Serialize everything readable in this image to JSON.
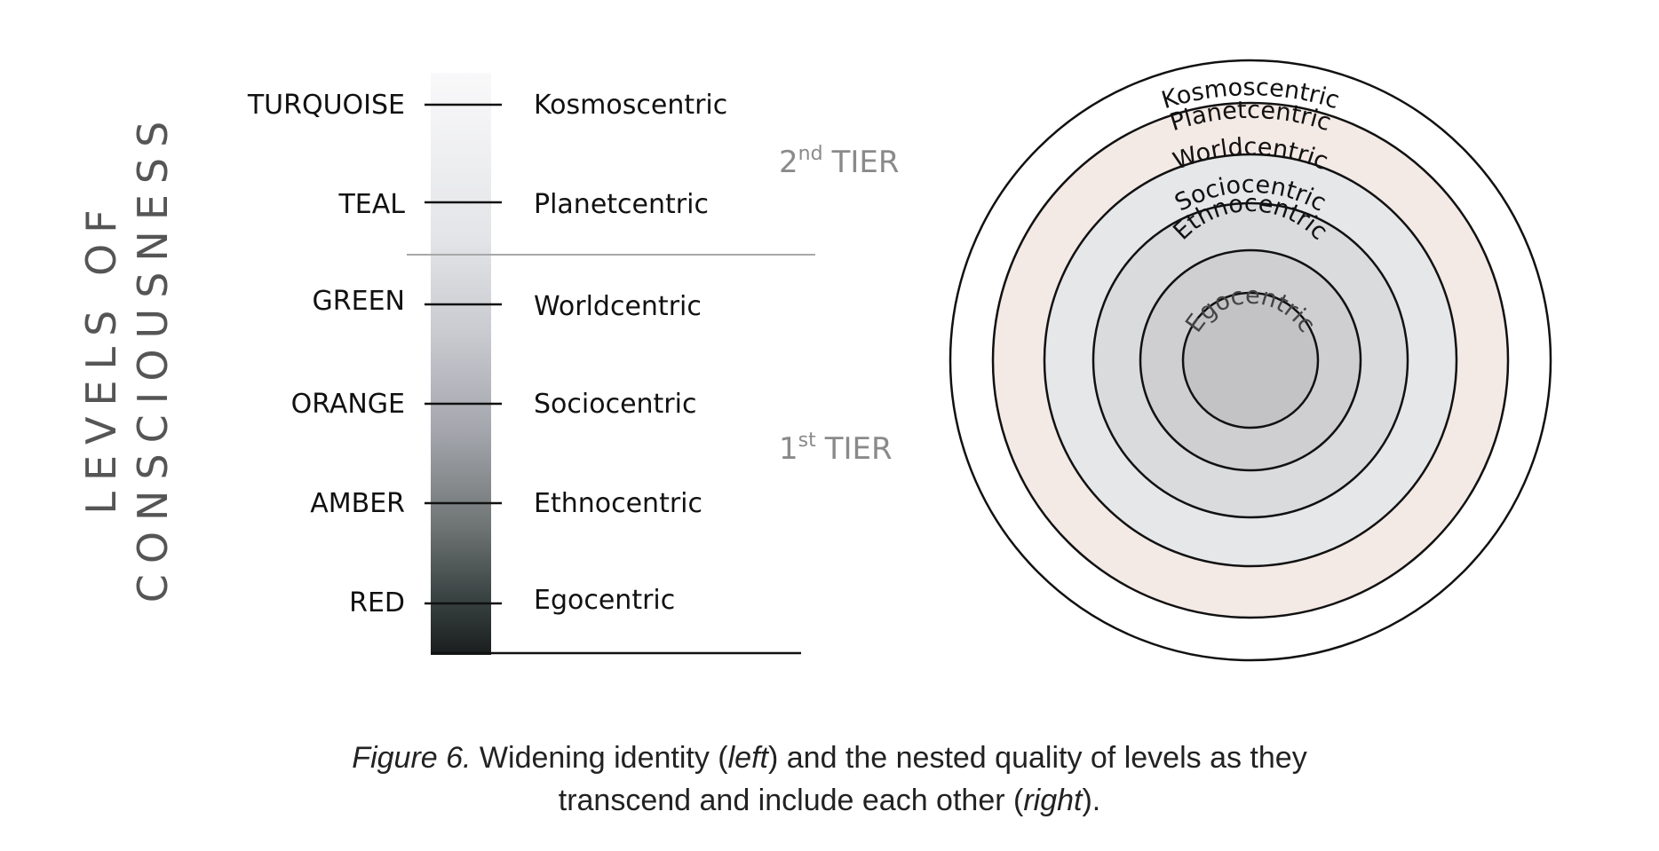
{
  "side_title": {
    "line1": "LEVELS OF",
    "line2": "CONSCIOUSNESS"
  },
  "levels": [
    {
      "color_name": "TURQUOISE",
      "identity": "Kosmoscentric"
    },
    {
      "color_name": "TEAL",
      "identity": "Planetcentric"
    },
    {
      "color_name": "GREEN",
      "identity": "Worldcentric"
    },
    {
      "color_name": "ORANGE",
      "identity": "Sociocentric"
    },
    {
      "color_name": "AMBER",
      "identity": "Ethnocentric"
    },
    {
      "color_name": "RED",
      "identity": "Egocentric"
    }
  ],
  "tiers": [
    {
      "num": "2",
      "suffix": "nd",
      "label": "TIER"
    },
    {
      "num": "1",
      "suffix": "st",
      "label": "TIER"
    }
  ],
  "rings": [
    {
      "label": "Kosmoscentric",
      "fill": "#ffffff"
    },
    {
      "label": "Planetcentric",
      "fill": "#f3e9e5"
    },
    {
      "label": "Worldcentric",
      "fill": "#e6e7e9"
    },
    {
      "label": "Sociocentric",
      "fill": "#dadbdd"
    },
    {
      "label": "Ethnocentric",
      "fill": "#cfcfd1"
    },
    {
      "label": "Egocentric",
      "fill": "#c3c3c5"
    }
  ],
  "caption": {
    "figure": "Figure 6.",
    "line1_text": " Widening identity (",
    "left_word": "left",
    "line1_end": ") and the nested quality of levels as they",
    "line2_text": "transcend and include each other (",
    "right_word": "right",
    "line2_end": ")."
  },
  "colors": {
    "line": "#111111",
    "tier_text": "#8a8a8a",
    "tier_divider": "#a8a8a8",
    "side_title": "#555555"
  }
}
